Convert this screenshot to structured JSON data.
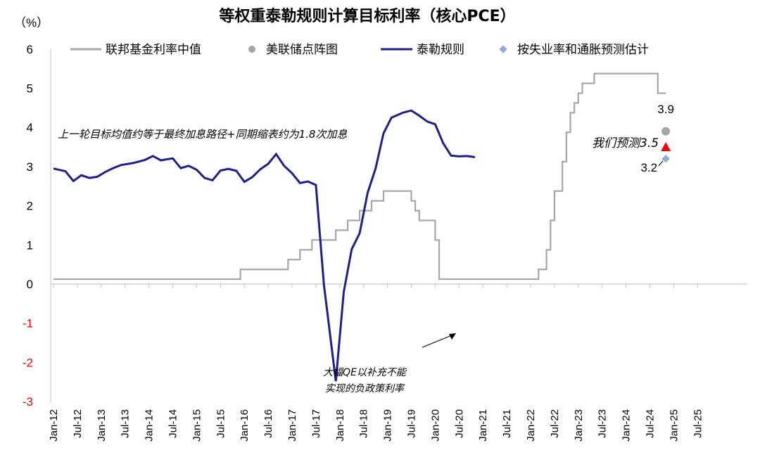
{
  "chart_data": {
    "type": "line",
    "title": "等权重泰勒规则计算目标利率（核心PCE）",
    "ylabel": "（%）",
    "ylim": [
      -3,
      6
    ],
    "yticks": [
      "6",
      "5",
      "4",
      "3",
      "2",
      "1",
      "0",
      "-1",
      "-2",
      "-3"
    ],
    "ytick_values": [
      6,
      5,
      4,
      3,
      2,
      1,
      0,
      -1,
      -2,
      -3
    ],
    "negative_tick_color": "#ff0000",
    "xticks": [
      "Jan-12",
      "Jul-12",
      "Jan-13",
      "Jul-13",
      "Jan-14",
      "Jul-14",
      "Jan-15",
      "Jul-15",
      "Jan-16",
      "Jul-16",
      "Jan-17",
      "Jul-17",
      "Jan-18",
      "Jul-18",
      "Jan-19",
      "Jul-19",
      "Jan-20",
      "Jul-20",
      "Jan-21",
      "Jul-21",
      "Jan-22",
      "Jul-22",
      "Jan-23",
      "Jul-23",
      "Jan-24",
      "Jul-24",
      "Jan-25",
      "Jul-25"
    ],
    "colors": {
      "fed_funds": "#a6a6a6",
      "taylor": "#1f1f8c",
      "dot_plot": "#a6a6a6",
      "estimate": "#8eaadb",
      "ours": "#ff0000"
    },
    "legend": {
      "fed_funds": "联邦基金利率中值",
      "dot_plot": "美联储点阵图",
      "taylor": "泰勒规则",
      "estimate": "按失业率和通胀预测估计"
    },
    "series": [
      {
        "name": "联邦基金利率中值",
        "kind": "step",
        "points": [
          [
            0,
            0.125
          ],
          [
            47,
            0.125
          ],
          [
            47,
            0.375
          ],
          [
            59,
            0.375
          ],
          [
            59,
            0.625
          ],
          [
            62,
            0.625
          ],
          [
            62,
            0.875
          ],
          [
            65,
            0.875
          ],
          [
            65,
            1.125
          ],
          [
            71,
            1.125
          ],
          [
            71,
            1.375
          ],
          [
            74,
            1.375
          ],
          [
            74,
            1.625
          ],
          [
            77,
            1.625
          ],
          [
            77,
            1.875
          ],
          [
            80,
            1.875
          ],
          [
            80,
            2.125
          ],
          [
            83,
            2.125
          ],
          [
            83,
            2.375
          ],
          [
            90,
            2.375
          ],
          [
            90,
            2.125
          ],
          [
            91,
            2.125
          ],
          [
            91,
            1.875
          ],
          [
            92,
            1.875
          ],
          [
            92,
            1.625
          ],
          [
            96,
            1.625
          ],
          [
            96,
            1.125
          ],
          [
            97,
            1.125
          ],
          [
            97,
            0.125
          ],
          [
            122,
            0.125
          ],
          [
            122,
            0.375
          ],
          [
            124,
            0.375
          ],
          [
            124,
            0.875
          ],
          [
            125,
            0.875
          ],
          [
            125,
            1.625
          ],
          [
            126,
            1.625
          ],
          [
            126,
            2.375
          ],
          [
            128,
            2.375
          ],
          [
            128,
            3.125
          ],
          [
            129,
            3.125
          ],
          [
            129,
            3.875
          ],
          [
            130,
            3.875
          ],
          [
            130,
            4.375
          ],
          [
            131,
            4.375
          ],
          [
            131,
            4.625
          ],
          [
            132,
            4.625
          ],
          [
            132,
            4.875
          ],
          [
            133,
            4.875
          ],
          [
            133,
            5.125
          ],
          [
            136,
            5.125
          ],
          [
            136,
            5.375
          ],
          [
            152,
            5.375
          ],
          [
            152,
            4.875
          ],
          [
            154,
            4.875
          ]
        ]
      },
      {
        "name": "泰勒规则",
        "kind": "line",
        "points": [
          [
            0,
            2.95
          ],
          [
            3,
            2.88
          ],
          [
            5,
            2.63
          ],
          [
            7,
            2.78
          ],
          [
            9,
            2.71
          ],
          [
            11,
            2.74
          ],
          [
            13,
            2.86
          ],
          [
            15,
            2.96
          ],
          [
            17,
            3.04
          ],
          [
            20,
            3.09
          ],
          [
            23,
            3.17
          ],
          [
            25,
            3.27
          ],
          [
            27,
            3.16
          ],
          [
            30,
            3.21
          ],
          [
            32,
            2.96
          ],
          [
            34,
            3.02
          ],
          [
            36,
            2.92
          ],
          [
            38,
            2.71
          ],
          [
            40,
            2.65
          ],
          [
            42,
            2.9
          ],
          [
            44,
            2.94
          ],
          [
            46,
            2.89
          ],
          [
            48,
            2.61
          ],
          [
            50,
            2.73
          ],
          [
            52,
            2.93
          ],
          [
            54,
            3.07
          ],
          [
            56,
            3.32
          ],
          [
            58,
            3.02
          ],
          [
            60,
            2.83
          ],
          [
            62,
            2.58
          ],
          [
            64,
            2.62
          ],
          [
            66,
            2.53
          ],
          [
            68,
            0.0
          ],
          [
            71,
            -2.48
          ],
          [
            73,
            -0.2
          ],
          [
            75,
            0.89
          ],
          [
            77,
            1.3
          ],
          [
            79,
            2.33
          ],
          [
            81,
            2.95
          ],
          [
            83,
            3.85
          ],
          [
            85,
            4.25
          ],
          [
            88,
            4.38
          ],
          [
            90,
            4.43
          ],
          [
            92,
            4.3
          ],
          [
            94,
            4.15
          ],
          [
            96,
            4.08
          ],
          [
            98,
            3.6
          ],
          [
            100,
            3.28
          ],
          [
            102,
            3.26
          ],
          [
            104,
            3.27
          ],
          [
            106,
            3.24
          ]
        ]
      }
    ],
    "dot_plot": {
      "x": 154,
      "y": 3.9,
      "label": "3.9"
    },
    "estimate": {
      "x": 154,
      "y": 3.2,
      "label": "3.2"
    },
    "our_forecast": {
      "x": 154,
      "y": 3.5,
      "label": "我们预测3.5"
    },
    "annotations": {
      "upper": "上一轮目标均值约等于最终加息路径+同期缩表约为1.8次加息",
      "lower_line1": "大幅QE以补充不能",
      "lower_line2": "实现的负政策利率"
    }
  }
}
